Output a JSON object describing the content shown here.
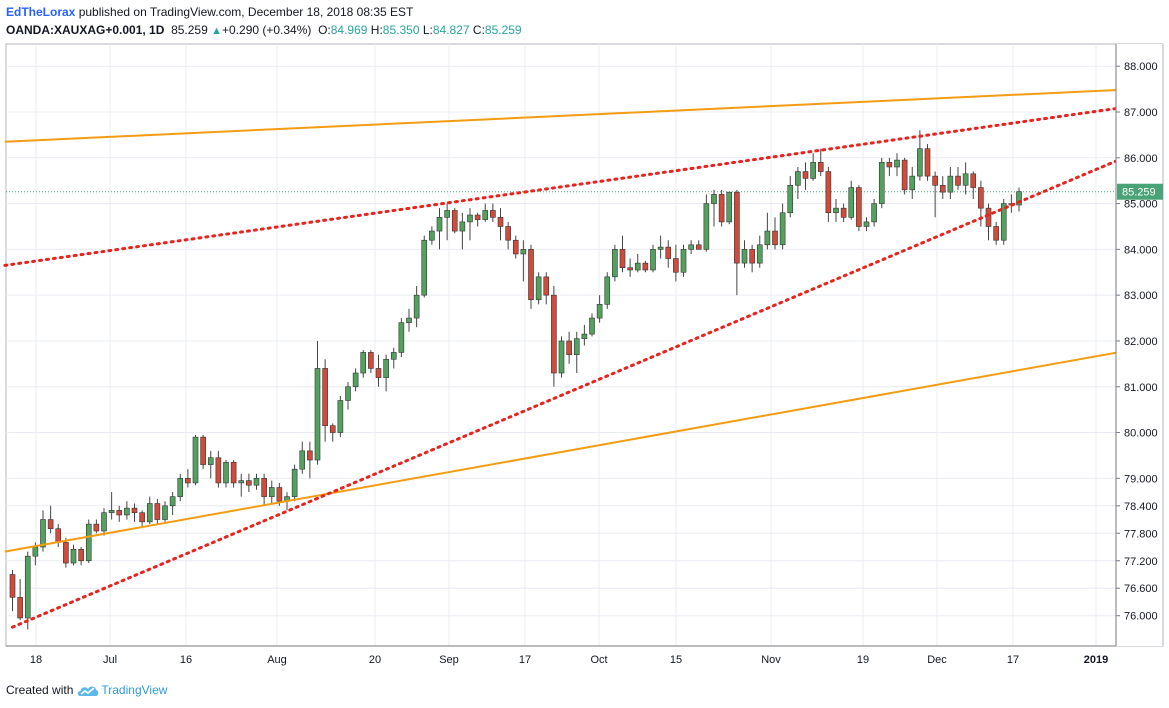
{
  "header": {
    "author": "EdTheLorax",
    "published_text": " published on TradingView.com, December 18, 2018 08:35 EST",
    "symbol": "OANDA:XAUXAG+0.001, 1D",
    "last": "85.259",
    "change": "+0.290 (+0.34%)",
    "o_label": "O:",
    "o_value": "84.969",
    "h_label": "H:",
    "h_value": "85.350",
    "l_label": "L:",
    "l_value": "84.827",
    "c_label": "C:",
    "c_value": "85.259"
  },
  "footer": {
    "created_with": "Created with",
    "brand": "TradingView"
  },
  "colors": {
    "up": "#53a15f",
    "down": "#d04b3b",
    "orange": "#f39c12",
    "red_dotted": "#e8221c",
    "price_label": "#4aa377",
    "grid": "#e9ecf2"
  },
  "chart_data": {
    "type": "candlestick",
    "title": "",
    "price_axis_ticks": [
      "88.000",
      "87.000",
      "86.000",
      "85.000",
      "84.000",
      "83.000",
      "82.000",
      "81.000",
      "80.000",
      "79.000",
      "78.400",
      "77.800",
      "77.200",
      "76.600",
      "76.000"
    ],
    "time_axis_labels": [
      "18",
      "Jul",
      "16",
      "Aug",
      "20",
      "Sep",
      "17",
      "Oct",
      "15",
      "Nov",
      "19",
      "Dec",
      "17",
      "2019"
    ],
    "last_price_label": "85.259",
    "last_price": 85.259,
    "ohlc": [
      [
        76.9,
        77.0,
        76.1,
        76.4
      ],
      [
        76.4,
        76.8,
        75.9,
        75.95
      ],
      [
        75.95,
        77.4,
        75.7,
        77.3
      ],
      [
        77.3,
        77.6,
        77.1,
        77.5
      ],
      [
        77.5,
        78.3,
        77.4,
        78.1
      ],
      [
        78.1,
        78.4,
        77.8,
        77.9
      ],
      [
        77.9,
        78.0,
        77.5,
        77.6
      ],
      [
        77.6,
        77.7,
        77.05,
        77.15
      ],
      [
        77.15,
        77.55,
        77.1,
        77.45
      ],
      [
        77.45,
        77.5,
        77.1,
        77.2
      ],
      [
        77.2,
        78.1,
        77.15,
        78.0
      ],
      [
        78.0,
        78.1,
        77.8,
        77.85
      ],
      [
        77.85,
        78.35,
        77.75,
        78.25
      ],
      [
        78.25,
        78.7,
        78.1,
        78.3
      ],
      [
        78.3,
        78.4,
        78.05,
        78.2
      ],
      [
        78.2,
        78.5,
        78.1,
        78.35
      ],
      [
        78.35,
        78.45,
        78.05,
        78.25
      ],
      [
        78.25,
        78.3,
        77.95,
        78.05
      ],
      [
        78.05,
        78.6,
        78.0,
        78.45
      ],
      [
        78.45,
        78.55,
        78.0,
        78.1
      ],
      [
        78.1,
        78.5,
        78.05,
        78.4
      ],
      [
        78.4,
        78.7,
        78.2,
        78.6
      ],
      [
        78.6,
        79.1,
        78.5,
        79.0
      ],
      [
        79.0,
        79.2,
        78.8,
        78.9
      ],
      [
        78.9,
        79.95,
        78.85,
        79.9
      ],
      [
        79.9,
        79.95,
        79.2,
        79.3
      ],
      [
        79.3,
        79.6,
        79.0,
        79.45
      ],
      [
        79.45,
        79.6,
        78.8,
        78.9
      ],
      [
        78.9,
        79.4,
        78.8,
        79.35
      ],
      [
        79.35,
        79.4,
        78.8,
        78.9
      ],
      [
        78.9,
        79.1,
        78.6,
        78.95
      ],
      [
        78.95,
        79.1,
        78.7,
        78.85
      ],
      [
        78.85,
        79.1,
        78.75,
        79.0
      ],
      [
        79.0,
        79.1,
        78.4,
        78.6
      ],
      [
        78.6,
        78.95,
        78.45,
        78.8
      ],
      [
        78.8,
        78.9,
        78.4,
        78.5
      ],
      [
        78.5,
        78.7,
        78.3,
        78.6
      ],
      [
        78.6,
        79.3,
        78.5,
        79.2
      ],
      [
        79.2,
        79.8,
        79.1,
        79.6
      ],
      [
        79.6,
        79.8,
        79.0,
        79.4
      ],
      [
        79.4,
        82.0,
        79.3,
        81.4
      ],
      [
        81.4,
        81.6,
        79.8,
        80.15
      ],
      [
        80.15,
        80.2,
        79.8,
        80.0
      ],
      [
        80.0,
        80.8,
        79.9,
        80.7
      ],
      [
        80.7,
        81.1,
        80.5,
        81.0
      ],
      [
        81.0,
        81.4,
        80.9,
        81.3
      ],
      [
        81.3,
        81.8,
        81.2,
        81.75
      ],
      [
        81.75,
        81.8,
        81.3,
        81.4
      ],
      [
        81.4,
        81.7,
        81.0,
        81.2
      ],
      [
        81.2,
        81.7,
        80.9,
        81.6
      ],
      [
        81.6,
        81.85,
        81.4,
        81.75
      ],
      [
        81.75,
        82.5,
        81.65,
        82.4
      ],
      [
        82.4,
        82.7,
        82.2,
        82.5
      ],
      [
        82.5,
        83.2,
        82.3,
        83.0
      ],
      [
        83.0,
        84.3,
        82.95,
        84.2
      ],
      [
        84.2,
        84.5,
        84.1,
        84.4
      ],
      [
        84.4,
        84.9,
        84.0,
        84.7
      ],
      [
        84.7,
        85.0,
        84.2,
        84.85
      ],
      [
        84.85,
        84.9,
        84.35,
        84.4
      ],
      [
        84.4,
        84.8,
        84.0,
        84.6
      ],
      [
        84.6,
        84.9,
        84.2,
        84.75
      ],
      [
        84.75,
        84.8,
        84.5,
        84.65
      ],
      [
        84.65,
        85.0,
        84.6,
        84.85
      ],
      [
        84.85,
        85.0,
        84.6,
        84.7
      ],
      [
        84.7,
        84.9,
        84.2,
        84.5
      ],
      [
        84.5,
        84.6,
        84.0,
        84.2
      ],
      [
        84.2,
        84.3,
        83.8,
        83.9
      ],
      [
        83.9,
        84.2,
        83.3,
        84.0
      ],
      [
        84.0,
        84.1,
        82.7,
        82.9
      ],
      [
        82.9,
        83.5,
        82.8,
        83.4
      ],
      [
        83.4,
        83.5,
        82.8,
        83.0
      ],
      [
        83.0,
        83.2,
        81.0,
        81.3
      ],
      [
        81.3,
        82.1,
        81.2,
        82.0
      ],
      [
        82.0,
        82.2,
        81.5,
        81.7
      ],
      [
        81.7,
        82.2,
        81.3,
        82.05
      ],
      [
        82.05,
        82.35,
        81.9,
        82.15
      ],
      [
        82.15,
        82.6,
        82.1,
        82.5
      ],
      [
        82.5,
        83.0,
        82.4,
        82.8
      ],
      [
        82.8,
        83.5,
        82.7,
        83.4
      ],
      [
        83.4,
        84.1,
        83.3,
        84.0
      ],
      [
        84.0,
        84.3,
        83.5,
        83.6
      ],
      [
        83.6,
        83.8,
        83.4,
        83.55
      ],
      [
        83.55,
        83.9,
        83.5,
        83.7
      ],
      [
        83.7,
        83.75,
        83.5,
        83.55
      ],
      [
        83.55,
        84.1,
        83.5,
        84.0
      ],
      [
        84.0,
        84.3,
        83.8,
        84.05
      ],
      [
        84.05,
        84.2,
        83.6,
        83.8
      ],
      [
        83.8,
        84.1,
        83.3,
        83.5
      ],
      [
        83.5,
        84.1,
        83.4,
        84.0
      ],
      [
        84.0,
        84.2,
        83.9,
        84.1
      ],
      [
        84.1,
        84.2,
        84.0,
        84.0
      ],
      [
        84.0,
        85.2,
        83.95,
        85.0
      ],
      [
        85.0,
        85.3,
        84.5,
        85.2
      ],
      [
        85.2,
        85.3,
        84.5,
        84.6
      ],
      [
        84.6,
        85.25,
        84.55,
        85.25
      ],
      [
        85.25,
        85.3,
        83.0,
        83.7
      ],
      [
        83.7,
        84.2,
        83.6,
        84.0
      ],
      [
        84.0,
        84.1,
        83.5,
        83.7
      ],
      [
        83.7,
        84.3,
        83.6,
        84.1
      ],
      [
        84.1,
        84.8,
        84.0,
        84.4
      ],
      [
        84.4,
        84.7,
        84.0,
        84.1
      ],
      [
        84.1,
        85.0,
        84.0,
        84.8
      ],
      [
        84.8,
        85.6,
        84.7,
        85.4
      ],
      [
        85.4,
        85.8,
        85.1,
        85.7
      ],
      [
        85.7,
        85.9,
        85.3,
        85.55
      ],
      [
        85.55,
        86.1,
        85.5,
        85.9
      ],
      [
        85.9,
        86.2,
        85.6,
        85.7
      ],
      [
        85.7,
        85.8,
        84.6,
        84.8
      ],
      [
        84.8,
        85.1,
        84.6,
        84.9
      ],
      [
        84.9,
        85.0,
        84.6,
        84.7
      ],
      [
        84.7,
        85.5,
        84.65,
        85.35
      ],
      [
        85.35,
        85.4,
        84.4,
        84.5
      ],
      [
        84.5,
        84.7,
        84.4,
        84.6
      ],
      [
        84.6,
        85.1,
        84.5,
        85.0
      ],
      [
        85.0,
        86.0,
        84.9,
        85.9
      ],
      [
        85.9,
        86.0,
        85.6,
        85.8
      ],
      [
        85.8,
        86.1,
        85.6,
        85.95
      ],
      [
        85.95,
        86.0,
        85.2,
        85.3
      ],
      [
        85.3,
        85.8,
        85.1,
        85.6
      ],
      [
        85.6,
        86.6,
        85.5,
        86.2
      ],
      [
        86.2,
        86.3,
        85.5,
        85.6
      ],
      [
        85.6,
        85.7,
        84.7,
        85.4
      ],
      [
        85.4,
        85.6,
        85.1,
        85.25
      ],
      [
        85.25,
        85.8,
        85.1,
        85.6
      ],
      [
        85.6,
        85.8,
        85.3,
        85.4
      ],
      [
        85.4,
        85.9,
        85.2,
        85.65
      ],
      [
        85.65,
        85.7,
        85.1,
        85.35
      ],
      [
        85.35,
        85.5,
        84.5,
        84.9
      ],
      [
        84.9,
        85.0,
        84.2,
        84.5
      ],
      [
        84.5,
        84.6,
        84.1,
        84.2
      ],
      [
        84.2,
        85.1,
        84.1,
        85.0
      ],
      [
        85.0,
        85.2,
        84.8,
        84.97
      ],
      [
        84.969,
        85.35,
        84.827,
        85.259
      ]
    ],
    "trend_lines": [
      {
        "style": "solid",
        "color": "orange",
        "from": {
          "bar": -1,
          "price": 86.35
        },
        "to": {
          "bar": 150,
          "price": 87.52
        }
      },
      {
        "style": "solid",
        "color": "orange",
        "from": {
          "bar": -1,
          "price": 77.4
        },
        "to": {
          "bar": 150,
          "price": 81.9
        }
      },
      {
        "style": "dotted",
        "color": "red",
        "from": {
          "bar": -1,
          "price": 83.65
        },
        "to": {
          "bar": 150,
          "price": 87.2
        }
      },
      {
        "style": "dotted",
        "color": "red",
        "from": {
          "bar": 0,
          "price": 75.75
        },
        "to": {
          "bar": 150,
          "price": 86.3
        }
      }
    ]
  }
}
